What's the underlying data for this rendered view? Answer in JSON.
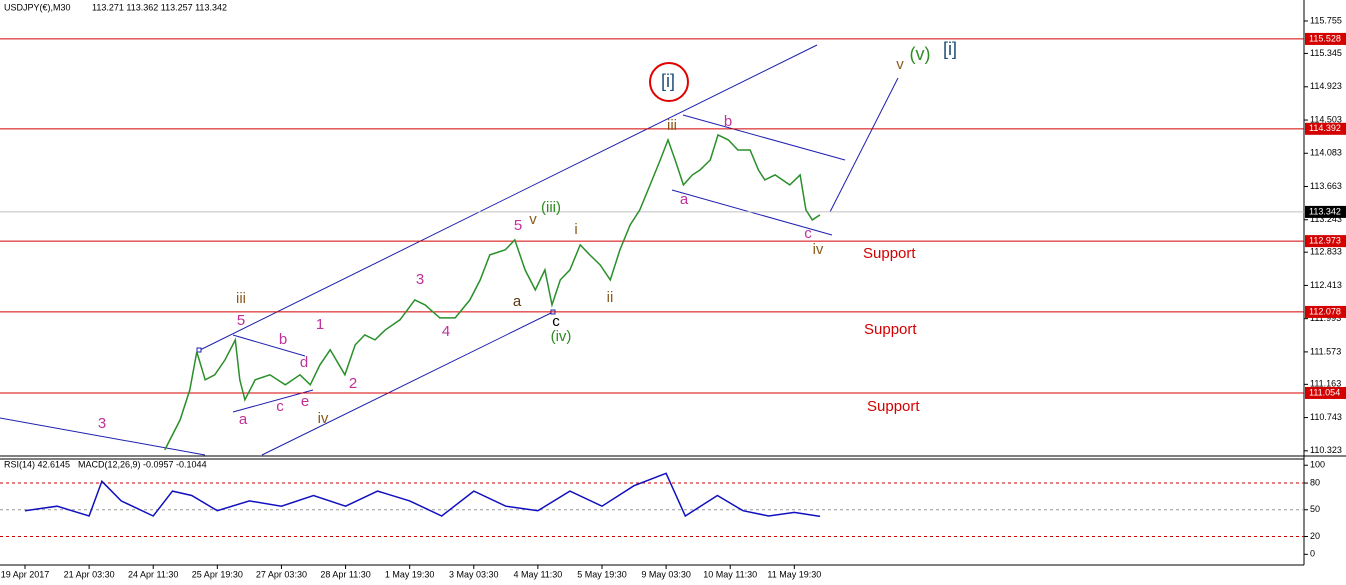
{
  "chart_data": [
    {
      "type": "line",
      "title": "USDJPY(€),M30",
      "subtitle": "113.271 113.362 113.257 113.342",
      "color": "#2a8f2a",
      "x": [
        2.18,
        2.42,
        2.57,
        2.68,
        2.81,
        2.96,
        3.12,
        3.28,
        3.35,
        3.43,
        3.59,
        3.82,
        4.06,
        4.29,
        4.45,
        4.6,
        4.76,
        4.99,
        5.15,
        5.3,
        5.46,
        5.62,
        5.85,
        6.08,
        6.24,
        6.47,
        6.71,
        6.94,
        7.1,
        7.25,
        7.49,
        7.64,
        7.8,
        7.96,
        8.11,
        8.22,
        8.35,
        8.5,
        8.66,
        8.81,
        8.97,
        9.13,
        9.28,
        9.44,
        9.59,
        9.75,
        9.91,
        10.03,
        10.14,
        10.27,
        10.41,
        10.53,
        10.69,
        10.81,
        10.97,
        11.12,
        11.31,
        11.44,
        11.54,
        11.7,
        11.93,
        12.09,
        12.18,
        12.28,
        12.4
      ],
      "values": [
        110.335,
        110.714,
        111.093,
        111.573,
        111.22,
        111.283,
        111.472,
        111.725,
        111.22,
        110.967,
        111.22,
        111.283,
        111.157,
        111.283,
        111.157,
        111.409,
        111.599,
        111.283,
        111.662,
        111.788,
        111.725,
        111.851,
        111.978,
        112.23,
        112.167,
        112.003,
        112.003,
        112.23,
        112.483,
        112.799,
        112.862,
        112.988,
        112.609,
        112.357,
        112.609,
        112.167,
        112.483,
        112.609,
        112.925,
        112.799,
        112.673,
        112.483,
        112.862,
        113.178,
        113.367,
        113.683,
        113.999,
        114.252,
        113.999,
        113.683,
        113.81,
        113.873,
        113.999,
        114.315,
        114.252,
        114.125,
        114.125,
        113.873,
        113.746,
        113.81,
        113.683,
        113.81,
        113.367,
        113.241,
        113.304
      ],
      "xlim": [
        -0.39,
        19.95
      ],
      "ylim": [
        110.27,
        116.02
      ],
      "yticks": [
        115.755,
        115.345,
        114.923,
        114.503,
        114.083,
        113.663,
        113.243,
        112.833,
        112.413,
        111.993,
        111.573,
        111.163,
        110.743,
        110.323
      ],
      "xticks": [
        {
          "value": 0,
          "label": "19 Apr 2017"
        },
        {
          "value": 1,
          "label": "21 Apr 03:30"
        },
        {
          "value": 2,
          "label": "24 Apr 11:30"
        },
        {
          "value": 3,
          "label": "25 Apr 19:30"
        },
        {
          "value": 4,
          "label": "27 Apr 03:30"
        },
        {
          "value": 5,
          "label": "28 Apr 11:30"
        },
        {
          "value": 6,
          "label": "1 May 19:30"
        },
        {
          "value": 7,
          "label": "3 May 03:30"
        },
        {
          "value": 8,
          "label": "4 May 11:30"
        },
        {
          "value": 9,
          "label": "5 May 19:30"
        },
        {
          "value": 10,
          "label": "9 May 03:30"
        },
        {
          "value": 11,
          "label": "10 May 11:30"
        },
        {
          "value": 12,
          "label": "11 May 19:30"
        }
      ],
      "levels": [
        115.528,
        114.392,
        112.973,
        112.078,
        111.054
      ],
      "level_color": "#d40000",
      "current_price": 113.342,
      "annotations": [
        {
          "text": "[i]",
          "color": "#1f4e79"
        },
        {
          "text": "[i]",
          "color": "#1f4e79"
        },
        {
          "text": "(v)",
          "color": "#2e8b22"
        },
        {
          "text": "v",
          "color": "#8b5a1a"
        },
        {
          "text": "iii",
          "color": "#8b5a1a"
        },
        {
          "text": "b",
          "color": "#c0309a"
        },
        {
          "text": "a",
          "color": "#c0309a"
        },
        {
          "text": "c",
          "color": "#c0309a"
        },
        {
          "text": "iv",
          "color": "#8b5a1a"
        },
        {
          "text": "(iii)",
          "color": "#2e8b22"
        },
        {
          "text": "v",
          "color": "#8b5a1a"
        },
        {
          "text": "5",
          "color": "#c0309a"
        },
        {
          "text": "i",
          "color": "#8b5a1a"
        },
        {
          "text": "ii",
          "color": "#8b5a1a"
        },
        {
          "text": "a",
          "color": "#5a3a10"
        },
        {
          "text": "c",
          "color": "#000000"
        },
        {
          "text": "(iv)",
          "color": "#2e8b22"
        },
        {
          "text": "3",
          "color": "#c0309a"
        },
        {
          "text": "4",
          "color": "#c0309a"
        },
        {
          "text": "1",
          "color": "#c0309a"
        },
        {
          "text": "2",
          "color": "#c0309a"
        },
        {
          "text": "iv",
          "color": "#8b5a1a"
        },
        {
          "text": "iii",
          "color": "#8b5a1a"
        },
        {
          "text": "5",
          "color": "#c0309a"
        },
        {
          "text": "b",
          "color": "#c0309a"
        },
        {
          "text": "d",
          "color": "#c0309a"
        },
        {
          "text": "c",
          "color": "#c0309a"
        },
        {
          "text": "e",
          "color": "#c0309a"
        },
        {
          "text": "a",
          "color": "#c0309a"
        },
        {
          "text": "3",
          "color": "#c0309a"
        }
      ],
      "support_labels": [
        "Support",
        "Support",
        "Support"
      ]
    },
    {
      "type": "line",
      "title": "RSI(14) 42.6145",
      "subtitle": "MACD(12,26,9) -0.0957 -0.1044",
      "color": "#1010c0",
      "x": [
        0,
        0.5,
        1,
        1.2,
        1.5,
        2,
        2.3,
        2.6,
        3,
        3.5,
        4,
        4.5,
        5,
        5.5,
        6,
        6.5,
        7,
        7.5,
        8,
        8.5,
        9,
        9.5,
        10,
        10.3,
        10.8,
        11.2,
        11.6,
        12,
        12.4
      ],
      "values": [
        49,
        54,
        43,
        82,
        60,
        43,
        71,
        66,
        49,
        60,
        54,
        66,
        54,
        71,
        60,
        43,
        71,
        54,
        49,
        71,
        54,
        77,
        91,
        43,
        66,
        49,
        43,
        47,
        42.6145
      ],
      "xlim": [
        -0.39,
        19.95
      ],
      "ylim": [
        -12,
        107
      ],
      "yticks": [
        100,
        80,
        50,
        20,
        0
      ],
      "grid": true
    }
  ]
}
